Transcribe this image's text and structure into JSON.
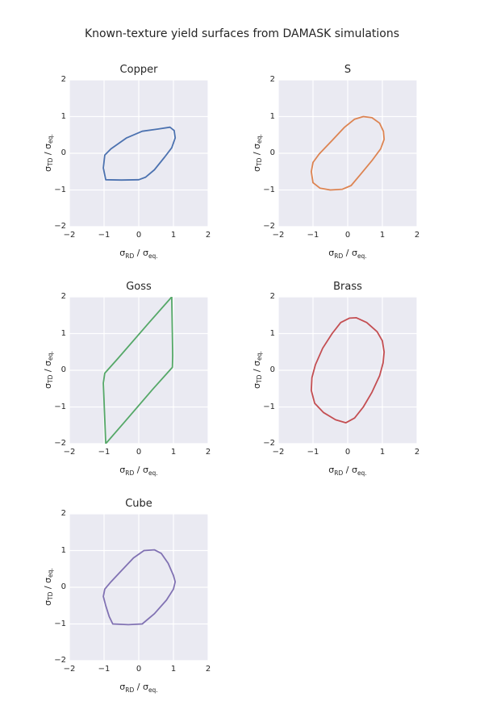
{
  "figure": {
    "title": "Known-texture yield surfaces from DAMASK simulations"
  },
  "style": {
    "axes_background": "#eaeaf2",
    "grid_color": "#ffffff",
    "text_color": "#262626"
  },
  "chart_data": [
    {
      "type": "line",
      "title": "Copper",
      "xlabel": "σ_RD / σ_eq.",
      "ylabel": "σ_TD / σ_eq.",
      "xlim": [
        -2,
        2
      ],
      "ylim": [
        -2,
        2
      ],
      "xticks": [
        -2,
        -1,
        0,
        1,
        2
      ],
      "yticks": [
        -2,
        -1,
        0,
        1,
        2
      ],
      "grid": true,
      "legend": false,
      "color": "#4c72b0",
      "points": [
        [
          -0.95,
          -0.72
        ],
        [
          -1.02,
          -0.4
        ],
        [
          -0.98,
          -0.05
        ],
        [
          -0.8,
          0.12
        ],
        [
          -0.35,
          0.42
        ],
        [
          0.1,
          0.6
        ],
        [
          0.55,
          0.66
        ],
        [
          0.9,
          0.71
        ],
        [
          1.02,
          0.62
        ],
        [
          1.05,
          0.42
        ],
        [
          0.95,
          0.15
        ],
        [
          0.75,
          -0.1
        ],
        [
          0.45,
          -0.45
        ],
        [
          0.2,
          -0.65
        ],
        [
          0.0,
          -0.72
        ],
        [
          -0.5,
          -0.73
        ]
      ]
    },
    {
      "type": "line",
      "title": "S",
      "xlabel": "σ_RD / σ_eq.",
      "ylabel": "σ_TD / σ_eq.",
      "xlim": [
        -2,
        2
      ],
      "ylim": [
        -2,
        2
      ],
      "xticks": [
        -2,
        -1,
        0,
        1,
        2
      ],
      "yticks": [
        -2,
        -1,
        0,
        1,
        2
      ],
      "grid": true,
      "legend": false,
      "color": "#dd8452",
      "points": [
        [
          -0.5,
          -1.0
        ],
        [
          -0.8,
          -0.95
        ],
        [
          -1.0,
          -0.8
        ],
        [
          -1.05,
          -0.5
        ],
        [
          -1.0,
          -0.25
        ],
        [
          -0.82,
          -0.02
        ],
        [
          -0.45,
          0.35
        ],
        [
          -0.1,
          0.7
        ],
        [
          0.2,
          0.93
        ],
        [
          0.45,
          1.0
        ],
        [
          0.7,
          0.97
        ],
        [
          0.92,
          0.82
        ],
        [
          1.03,
          0.6
        ],
        [
          1.05,
          0.38
        ],
        [
          0.95,
          0.12
        ],
        [
          0.7,
          -0.2
        ],
        [
          0.35,
          -0.6
        ],
        [
          0.1,
          -0.88
        ],
        [
          -0.15,
          -0.98
        ]
      ]
    },
    {
      "type": "line",
      "title": "Goss",
      "xlabel": "σ_RD / σ_eq.",
      "ylabel": "σ_TD / σ_eq.",
      "xlim": [
        -2,
        2
      ],
      "ylim": [
        -2,
        2
      ],
      "xticks": [
        -2,
        -1,
        0,
        1,
        2
      ],
      "yticks": [
        -2,
        -1,
        0,
        1,
        2
      ],
      "grid": true,
      "legend": false,
      "color": "#55a868",
      "points": [
        [
          -0.95,
          -2.0
        ],
        [
          -1.02,
          -0.35
        ],
        [
          -0.98,
          -0.08
        ],
        [
          -0.6,
          0.32
        ],
        [
          0.3,
          1.3
        ],
        [
          0.88,
          1.92
        ],
        [
          0.95,
          2.0
        ],
        [
          0.98,
          0.4
        ],
        [
          0.97,
          0.08
        ],
        [
          0.4,
          -0.52
        ],
        [
          -0.4,
          -1.4
        ]
      ]
    },
    {
      "type": "line",
      "title": "Brass",
      "xlabel": "σ_RD / σ_eq.",
      "ylabel": "σ_TD / σ_eq.",
      "xlim": [
        -2,
        2
      ],
      "ylim": [
        -2,
        2
      ],
      "xticks": [
        -2,
        -1,
        0,
        1,
        2
      ],
      "yticks": [
        -2,
        -1,
        0,
        1,
        2
      ],
      "grid": true,
      "legend": false,
      "color": "#c44e52",
      "points": [
        [
          0.25,
          1.43
        ],
        [
          0.55,
          1.3
        ],
        [
          0.85,
          1.05
        ],
        [
          1.0,
          0.8
        ],
        [
          1.05,
          0.5
        ],
        [
          1.02,
          0.2
        ],
        [
          0.92,
          -0.15
        ],
        [
          0.7,
          -0.6
        ],
        [
          0.45,
          -1.0
        ],
        [
          0.2,
          -1.3
        ],
        [
          -0.05,
          -1.43
        ],
        [
          -0.35,
          -1.35
        ],
        [
          -0.7,
          -1.15
        ],
        [
          -0.95,
          -0.9
        ],
        [
          -1.05,
          -0.55
        ],
        [
          -1.03,
          -0.2
        ],
        [
          -0.93,
          0.15
        ],
        [
          -0.72,
          0.6
        ],
        [
          -0.45,
          1.0
        ],
        [
          -0.2,
          1.3
        ],
        [
          0.05,
          1.42
        ]
      ]
    },
    {
      "type": "line",
      "title": "Cube",
      "xlabel": "σ_RD / σ_eq.",
      "ylabel": "σ_TD / σ_eq.",
      "xlim": [
        -2,
        2
      ],
      "ylim": [
        -2,
        2
      ],
      "xticks": [
        -2,
        -1,
        0,
        1,
        2
      ],
      "yticks": [
        -2,
        -1,
        0,
        1,
        2
      ],
      "grid": true,
      "legend": false,
      "color": "#8172b3",
      "points": [
        [
          -0.75,
          -1.0
        ],
        [
          -0.3,
          -1.02
        ],
        [
          0.1,
          -1.0
        ],
        [
          0.45,
          -0.72
        ],
        [
          0.8,
          -0.35
        ],
        [
          1.0,
          -0.05
        ],
        [
          1.05,
          0.15
        ],
        [
          1.0,
          0.32
        ],
        [
          0.85,
          0.65
        ],
        [
          0.65,
          0.92
        ],
        [
          0.45,
          1.02
        ],
        [
          0.15,
          1.0
        ],
        [
          -0.15,
          0.8
        ],
        [
          -0.5,
          0.45
        ],
        [
          -0.8,
          0.15
        ],
        [
          -0.98,
          -0.05
        ],
        [
          -1.02,
          -0.25
        ],
        [
          -0.95,
          -0.5
        ],
        [
          -0.85,
          -0.8
        ]
      ]
    }
  ]
}
